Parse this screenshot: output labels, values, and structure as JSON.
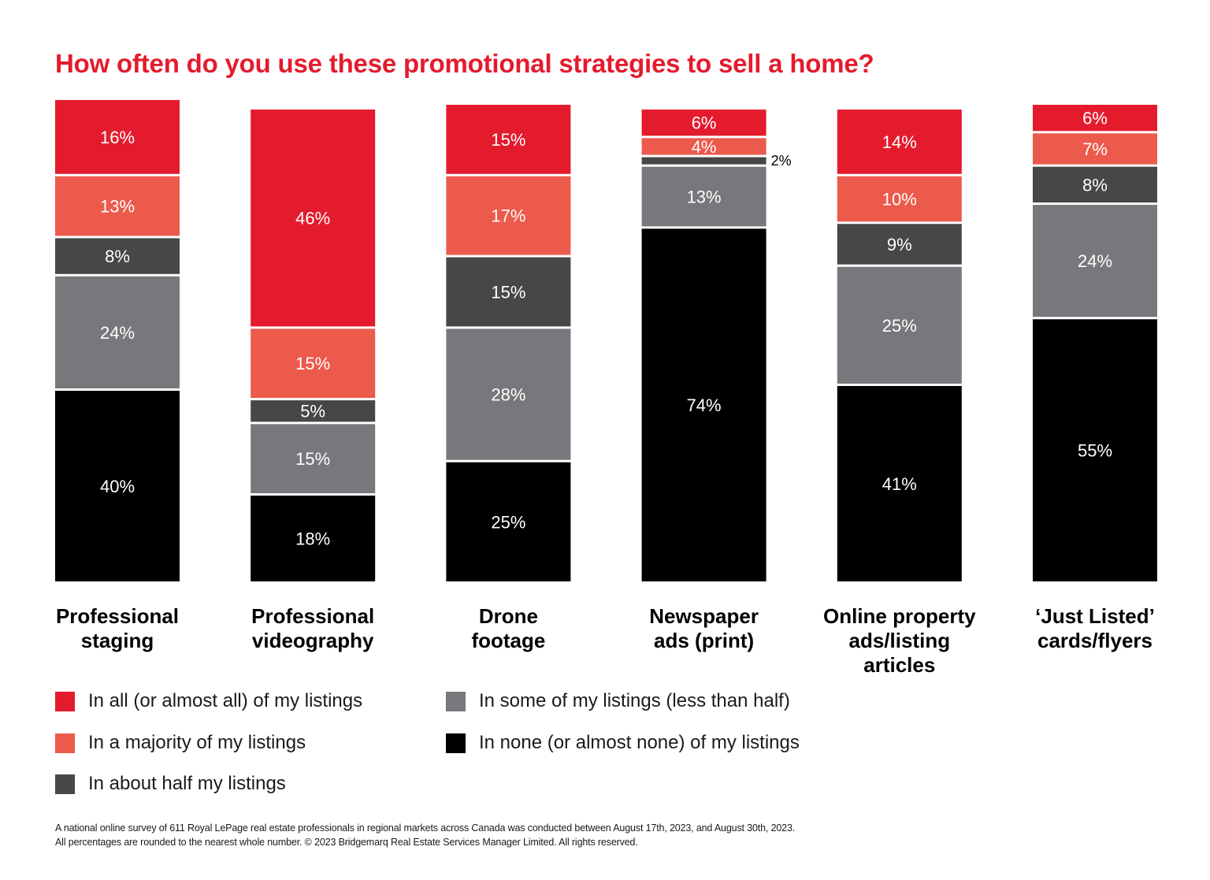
{
  "chart_data": {
    "type": "bar",
    "stacked": true,
    "title": "How often do you use these promotional strategies to sell a home?",
    "categories": [
      [
        "Professional",
        "staging"
      ],
      [
        "Professional",
        "videography"
      ],
      [
        "Drone",
        "footage"
      ],
      [
        "Newspaper",
        "ads (print)"
      ],
      [
        "Online property",
        "ads/listing",
        "articles"
      ],
      [
        "‘Just Listed’",
        "cards/flyers"
      ]
    ],
    "series": [
      {
        "name": "In all (or almost all) of my listings",
        "color": "#e41b2d",
        "values": [
          16,
          46,
          15,
          6,
          14,
          6
        ]
      },
      {
        "name": "In a majority of my listings",
        "color": "#ec5a4b",
        "values": [
          13,
          15,
          17,
          4,
          10,
          7
        ]
      },
      {
        "name": "In about half my listings",
        "color": "#474748",
        "values": [
          8,
          5,
          15,
          2,
          9,
          8
        ]
      },
      {
        "name": "In some of my listings (less than half)",
        "color": "#77787b",
        "values": [
          24,
          15,
          28,
          13,
          25,
          24
        ]
      },
      {
        "name": "In none (or almost none) of my listings",
        "color": "#000000",
        "values": [
          40,
          18,
          25,
          74,
          41,
          55
        ]
      }
    ],
    "value_suffix": "%",
    "legend_position": "bottom",
    "grid": false
  },
  "footnotes": [
    "A national online survey of 611 Royal LePage real estate professionals in regional markets across Canada was conducted between August 17th, 2023, and August 30th, 2023.",
    "All percentages are rounded to the nearest whole number. © 2023 Bridgemarq Real Estate Services Manager Limited. All rights reserved."
  ]
}
